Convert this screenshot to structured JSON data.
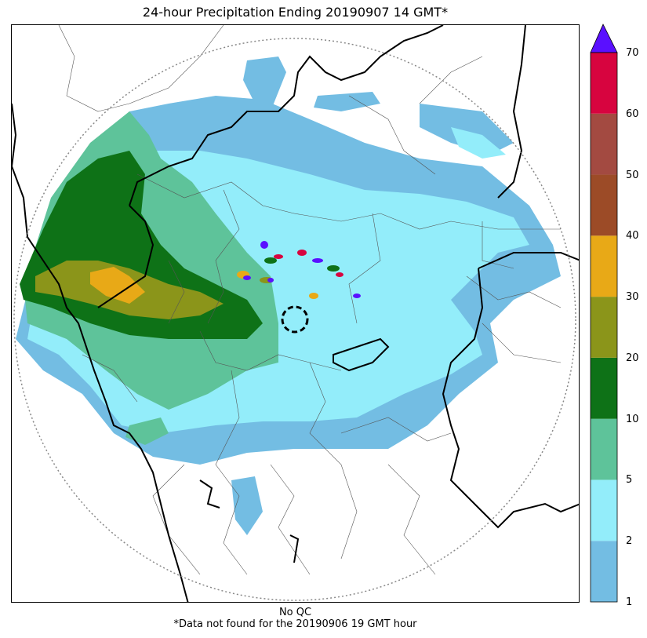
{
  "title": "24-hour Precipitation Ending 20190907 14 GMT*",
  "footer": {
    "qc": "No QC",
    "note": "*Data not found for the 20190906 19 GMT hour"
  },
  "legend": {
    "levels": [
      "1",
      "2",
      "5",
      "10",
      "20",
      "30",
      "40",
      "50",
      "60",
      "70"
    ],
    "colors": [
      "#73bde3",
      "#93edfa",
      "#5ec39a",
      "#0e7217",
      "#8b951a",
      "#e8a917",
      "#9c4b27",
      "#a34a41",
      "#d7043f"
    ],
    "extend_color": "#5a10ff"
  },
  "colors": {
    "border_thick": "#000000",
    "border_thin": "#555555",
    "range_ring": "#888888"
  }
}
